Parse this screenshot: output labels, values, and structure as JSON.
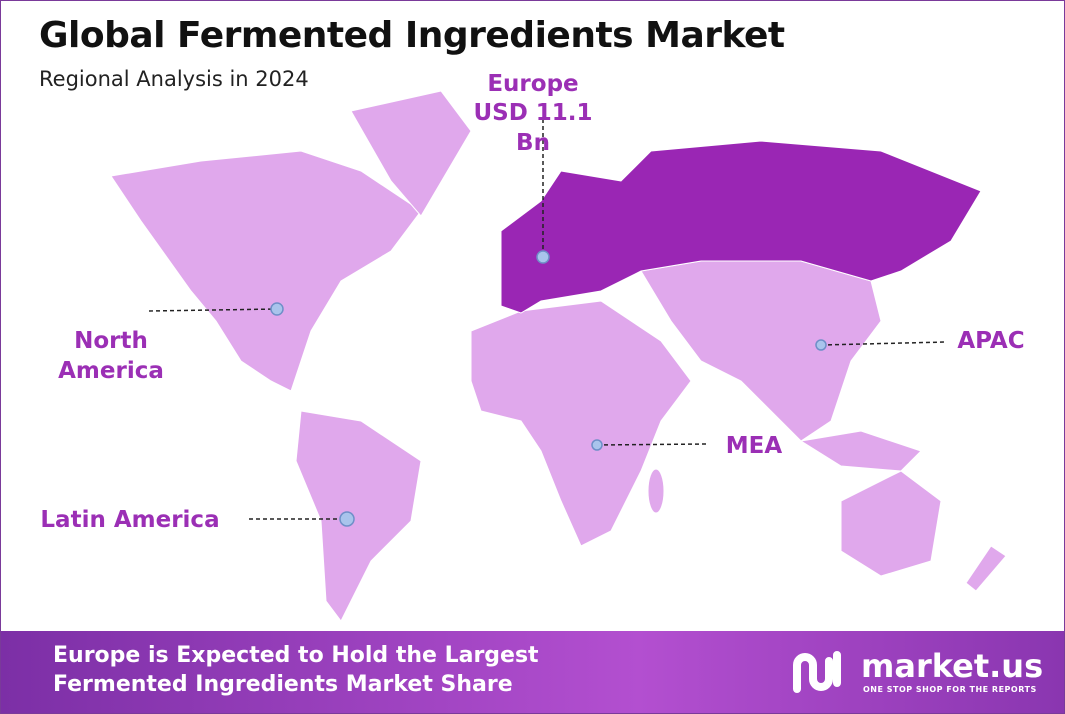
{
  "header": {
    "title": "Global Fermented Ingredients Market",
    "subtitle": "Regional Analysis in 2024"
  },
  "regions": [
    {
      "label": "Europe",
      "value_label": "USD 11.1 Bn"
    },
    {
      "label": "North America"
    },
    {
      "label": "APAC"
    },
    {
      "label": "MEA"
    },
    {
      "label": "Latin America"
    }
  ],
  "footer": {
    "text": "Europe is Expected to Hold the Largest Fermented Ingredients Market Share",
    "logo": "market.us",
    "tagline": "ONE STOP SHOP FOR THE REPORTS"
  }
}
